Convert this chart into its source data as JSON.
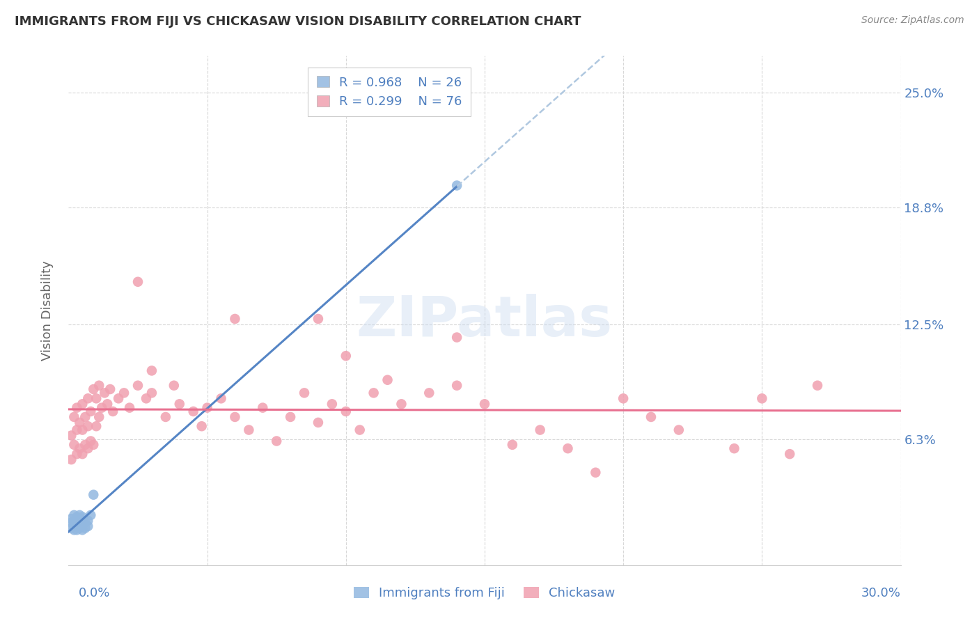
{
  "title": "IMMIGRANTS FROM FIJI VS CHICKASAW VISION DISABILITY CORRELATION CHART",
  "source": "Source: ZipAtlas.com",
  "ylabel": "Vision Disability",
  "xlim": [
    0.0,
    0.3
  ],
  "ylim": [
    -0.005,
    0.27
  ],
  "legend_fiji_r": "R = 0.968",
  "legend_fiji_n": "N = 26",
  "legend_chickasaw_r": "R = 0.299",
  "legend_chickasaw_n": "N = 76",
  "fiji_color": "#92b8e0",
  "chickasaw_color": "#f0a0b0",
  "fiji_line_color": "#5585c5",
  "chickasaw_line_color": "#e87090",
  "fiji_dashed_color": "#b0c8e0",
  "background_color": "#ffffff",
  "grid_color": "#d8d8d8",
  "title_color": "#333333",
  "axis_label_color": "#5080c0",
  "right_label_color": "#5080c0",
  "ytick_vals": [
    0.0,
    0.063,
    0.125,
    0.188,
    0.25
  ],
  "ytick_labels": [
    "",
    "6.3%",
    "12.5%",
    "18.8%",
    "25.0%"
  ],
  "fiji_scatter_x": [
    0.001,
    0.001,
    0.001,
    0.002,
    0.002,
    0.002,
    0.002,
    0.003,
    0.003,
    0.003,
    0.003,
    0.004,
    0.004,
    0.004,
    0.004,
    0.005,
    0.005,
    0.005,
    0.005,
    0.006,
    0.006,
    0.007,
    0.007,
    0.008,
    0.14,
    0.009
  ],
  "fiji_scatter_y": [
    0.015,
    0.018,
    0.02,
    0.014,
    0.016,
    0.018,
    0.022,
    0.014,
    0.016,
    0.018,
    0.021,
    0.015,
    0.018,
    0.02,
    0.022,
    0.014,
    0.017,
    0.019,
    0.021,
    0.015,
    0.018,
    0.016,
    0.019,
    0.022,
    0.2,
    0.033
  ],
  "chickasaw_scatter_x": [
    0.001,
    0.001,
    0.002,
    0.002,
    0.003,
    0.003,
    0.003,
    0.004,
    0.004,
    0.005,
    0.005,
    0.005,
    0.006,
    0.006,
    0.007,
    0.007,
    0.007,
    0.008,
    0.008,
    0.009,
    0.009,
    0.01,
    0.01,
    0.011,
    0.011,
    0.012,
    0.013,
    0.014,
    0.015,
    0.016,
    0.018,
    0.02,
    0.022,
    0.025,
    0.028,
    0.03,
    0.035,
    0.038,
    0.04,
    0.045,
    0.048,
    0.05,
    0.055,
    0.06,
    0.065,
    0.07,
    0.075,
    0.08,
    0.085,
    0.09,
    0.095,
    0.1,
    0.105,
    0.11,
    0.115,
    0.12,
    0.13,
    0.14,
    0.15,
    0.16,
    0.17,
    0.18,
    0.19,
    0.2,
    0.21,
    0.22,
    0.24,
    0.25,
    0.26,
    0.27,
    0.09,
    0.1,
    0.025,
    0.03,
    0.06,
    0.14
  ],
  "chickasaw_scatter_y": [
    0.052,
    0.065,
    0.06,
    0.075,
    0.055,
    0.068,
    0.08,
    0.058,
    0.072,
    0.055,
    0.068,
    0.082,
    0.06,
    0.075,
    0.058,
    0.07,
    0.085,
    0.062,
    0.078,
    0.06,
    0.09,
    0.07,
    0.085,
    0.075,
    0.092,
    0.08,
    0.088,
    0.082,
    0.09,
    0.078,
    0.085,
    0.088,
    0.08,
    0.092,
    0.085,
    0.088,
    0.075,
    0.092,
    0.082,
    0.078,
    0.07,
    0.08,
    0.085,
    0.075,
    0.068,
    0.08,
    0.062,
    0.075,
    0.088,
    0.072,
    0.082,
    0.078,
    0.068,
    0.088,
    0.095,
    0.082,
    0.088,
    0.092,
    0.082,
    0.06,
    0.068,
    0.058,
    0.045,
    0.085,
    0.075,
    0.068,
    0.058,
    0.085,
    0.055,
    0.092,
    0.128,
    0.108,
    0.148,
    0.1,
    0.128,
    0.118
  ]
}
